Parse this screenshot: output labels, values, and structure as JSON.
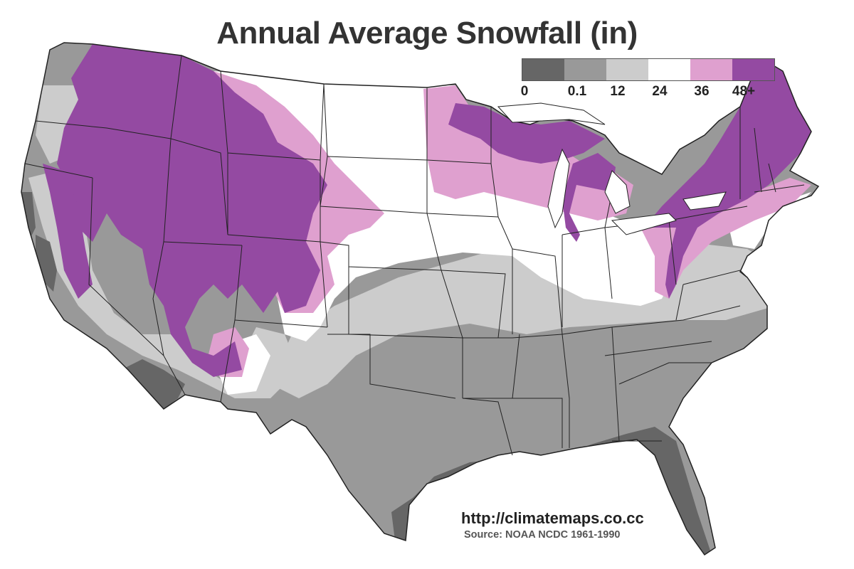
{
  "title": "Annual Average Snowfall (in)",
  "legend": {
    "labels": [
      "0",
      "0.1",
      "12",
      "24",
      "36",
      "48+"
    ],
    "bins": [
      {
        "range": "0 – 0.1",
        "color": "#666666"
      },
      {
        "range": "0.1 – 12",
        "color": "#999999"
      },
      {
        "range": "12 – 24",
        "color": "#cccccc"
      },
      {
        "range": "24 – 36",
        "color": "#ffffff"
      },
      {
        "range": "36 – 48",
        "color": "#dfa0cf"
      },
      {
        "range": "48+",
        "color": "#944aa2"
      }
    ]
  },
  "url": "http://climatemaps.co.cc",
  "source": "Source: NOAA NCDC 1961-1990",
  "colors": {
    "bin_0": "#666666",
    "bin_0_1": "#999999",
    "bin_12": "#cccccc",
    "bin_24": "#ffffff",
    "bin_36": "#dfa0cf",
    "bin_48": "#944aa2",
    "borders": "#222222"
  }
}
